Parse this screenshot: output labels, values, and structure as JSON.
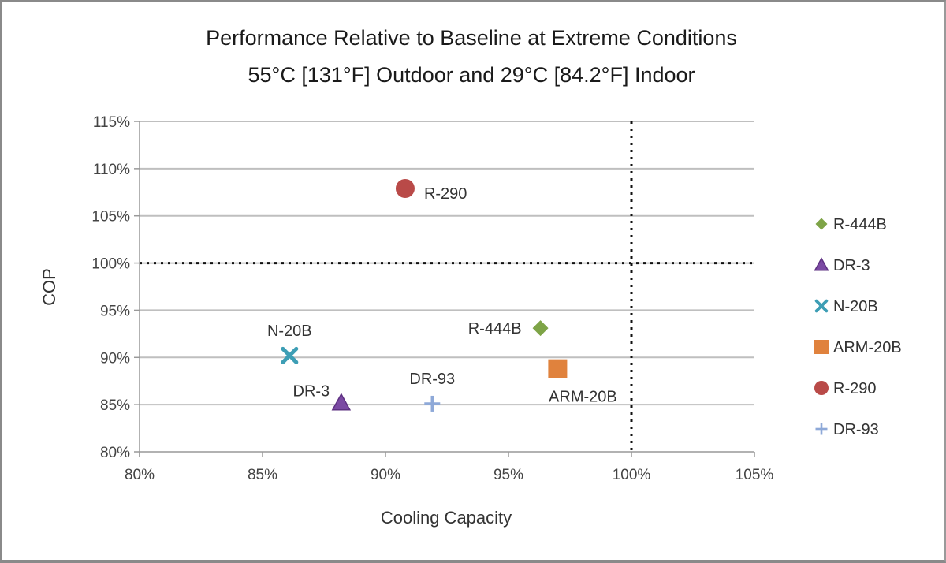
{
  "chart_data": {
    "type": "scatter",
    "title": [
      "Performance Relative to Baseline at Extreme Conditions",
      "55°C [131°F] Outdoor and 29°C [84.2°F] Indoor"
    ],
    "xlabel": "Cooling Capacity",
    "ylabel": "COP",
    "xlim": [
      80,
      105
    ],
    "ylim": [
      80,
      115
    ],
    "x_ticks": [
      "80%",
      "85%",
      "90%",
      "95%",
      "100%",
      "105%"
    ],
    "y_ticks": [
      "80%",
      "85%",
      "90%",
      "95%",
      "100%",
      "105%",
      "110%",
      "115%"
    ],
    "grid": "horizontal",
    "reference_lines": [
      {
        "axis": "x",
        "value": 100,
        "style": "dotted"
      },
      {
        "axis": "y",
        "value": 100,
        "style": "dotted"
      }
    ],
    "legend_position": "right",
    "series": [
      {
        "name": "R-444B",
        "marker": "diamond",
        "color": "#7ea447",
        "x": 96.3,
        "y": 93.1,
        "label": "R-444B",
        "label_pos": "left"
      },
      {
        "name": "DR-3",
        "marker": "triangle",
        "color": "#7b4aa3",
        "x": 88.2,
        "y": 85.2,
        "label": "DR-3",
        "label_pos": "upper-left"
      },
      {
        "name": "N-20B",
        "marker": "x",
        "color": "#3d9eb5",
        "x": 86.1,
        "y": 90.2,
        "label": "N-20B",
        "label_pos": "above"
      },
      {
        "name": "ARM-20B",
        "marker": "square",
        "color": "#e0823d",
        "x": 97.0,
        "y": 88.8,
        "label": "ARM-20B",
        "label_pos": "below"
      },
      {
        "name": "R-290",
        "marker": "circle",
        "color": "#b94a48",
        "x": 90.8,
        "y": 107.9,
        "label": "R-290",
        "label_pos": "right"
      },
      {
        "name": "DR-93",
        "marker": "plus",
        "color": "#8ea9d8",
        "x": 91.9,
        "y": 85.1,
        "label": "DR-93",
        "label_pos": "above"
      }
    ]
  }
}
